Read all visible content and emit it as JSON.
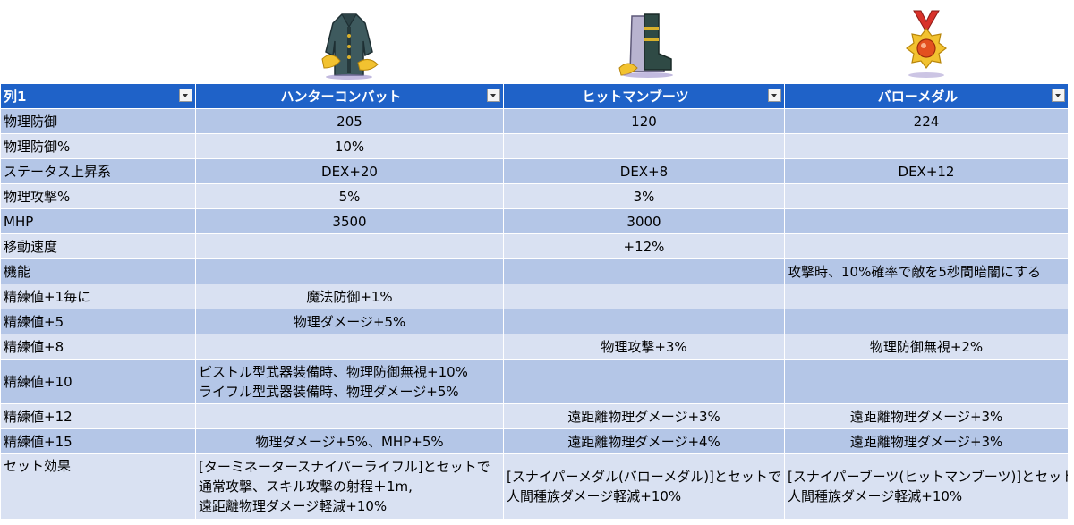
{
  "table": {
    "headers": [
      "列1",
      "ハンターコンバット",
      "ヒットマンブーツ",
      "バローメダル"
    ],
    "rows": [
      {
        "label": "物理防御",
        "cells": [
          [
            "205"
          ],
          [
            "120"
          ],
          [
            "224"
          ]
        ]
      },
      {
        "label": "物理防御%",
        "cells": [
          [
            "10%"
          ],
          [],
          []
        ]
      },
      {
        "label": "ステータス上昇系",
        "cells": [
          [
            "DEX+20"
          ],
          [
            "DEX+8"
          ],
          [
            "DEX+12"
          ]
        ]
      },
      {
        "label": "物理攻撃%",
        "cells": [
          [
            "5%"
          ],
          [
            "3%"
          ],
          []
        ]
      },
      {
        "label": "MHP",
        "cells": [
          [
            "3500"
          ],
          [
            "3000"
          ],
          []
        ]
      },
      {
        "label": "移動速度",
        "cells": [
          [],
          [
            "+12%"
          ],
          []
        ]
      },
      {
        "label": "機能",
        "cells": [
          [],
          [],
          [
            "攻撃時、10%確率で敵を5秒間暗闇にする"
          ]
        ]
      },
      {
        "label": "精練値+1毎に",
        "cells": [
          [
            "魔法防御+1%"
          ],
          [],
          []
        ]
      },
      {
        "label": "精練値+5",
        "cells": [
          [
            "物理ダメージ+5%"
          ],
          [],
          []
        ]
      },
      {
        "label": "精練値+8",
        "cells": [
          [],
          [
            "物理攻撃+3%"
          ],
          [
            "物理防御無視+2%"
          ]
        ]
      },
      {
        "label": "精練値+10",
        "cells": [
          [
            "ピストル型武器装備時、物理防御無視+10%",
            "ライフル型武器装備時、物理ダメージ+5%"
          ],
          [],
          []
        ]
      },
      {
        "label": "精練値+12",
        "cells": [
          [],
          [
            "遠距離物理ダメージ+3%"
          ],
          [
            "遠距離物理ダメージ+3%"
          ]
        ]
      },
      {
        "label": "精練値+15",
        "cells": [
          [
            "物理ダメージ+5%、MHP+5%"
          ],
          [
            "遠距離物理ダメージ+4%"
          ],
          [
            "遠距離物理ダメージ+3%"
          ]
        ]
      },
      {
        "label": "セット効果",
        "cells": [
          [
            "[ターミネータースナイパーライフル]とセットで",
            "通常攻撃、スキル攻撃の射程＋1m,",
            "遠距離物理ダメージ軽減+10%"
          ],
          [
            "[スナイパーメダル(バローメダル)]とセットで",
            "人間種族ダメージ軽減+10%"
          ],
          [
            "[スナイパーブーツ(ヒットマンブーツ)]とセットで",
            "人間種族ダメージ軽減+10%"
          ]
        ]
      }
    ]
  },
  "icons": [
    "jacket-icon",
    "boots-icon",
    "medal-icon"
  ],
  "colors": {
    "header": "#1f62c8",
    "band_dark": "#b4c6e7",
    "band_light": "#d9e1f2"
  }
}
